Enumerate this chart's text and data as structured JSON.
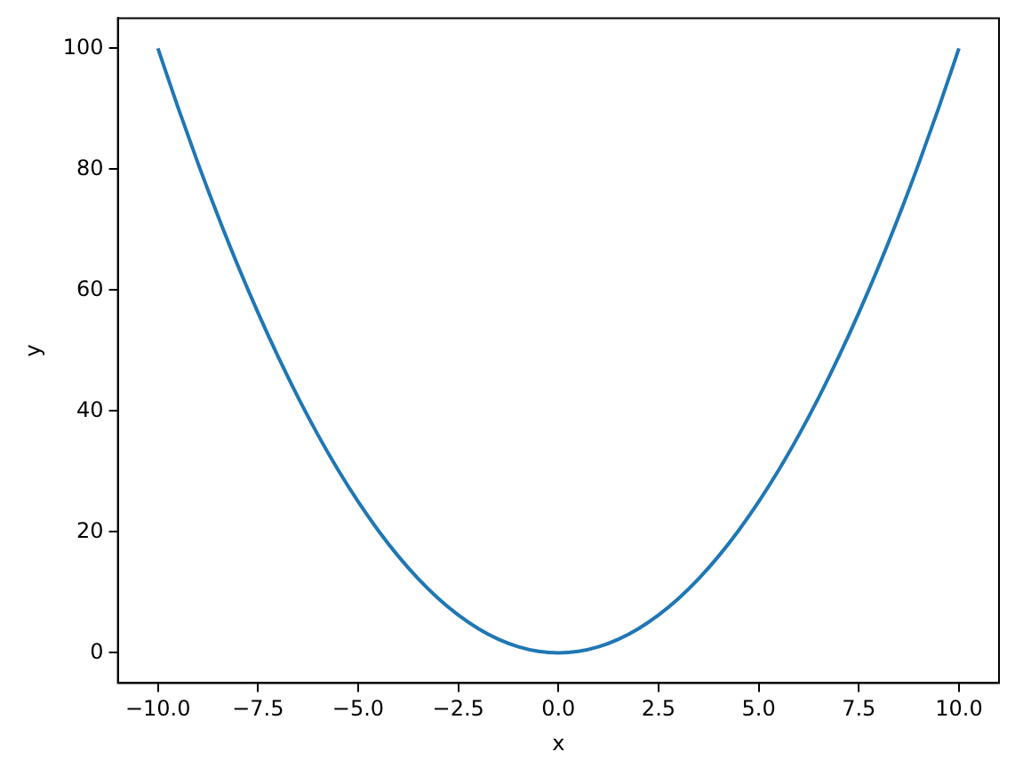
{
  "chart_data": {
    "type": "line",
    "xlabel": "x",
    "ylabel": "y",
    "x": [
      -10,
      -9.5,
      -9,
      -8.5,
      -8,
      -7.5,
      -7,
      -6.5,
      -6,
      -5.5,
      -5,
      -4.5,
      -4,
      -3.5,
      -3,
      -2.5,
      -2,
      -1.5,
      -1,
      -0.5,
      0,
      0.5,
      1,
      1.5,
      2,
      2.5,
      3,
      3.5,
      4,
      4.5,
      5,
      5.5,
      6,
      6.5,
      7,
      7.5,
      8,
      8.5,
      9,
      9.5,
      10
    ],
    "series": [
      {
        "color": "#1f77b4",
        "values": [
          100,
          90.25,
          81,
          72.25,
          64,
          56.25,
          49,
          42.25,
          36,
          30.25,
          25,
          20.25,
          16,
          12.25,
          9,
          6.25,
          4,
          2.25,
          1,
          0.25,
          0,
          0.25,
          1,
          2.25,
          4,
          6.25,
          9,
          12.25,
          16,
          20.25,
          25,
          30.25,
          36,
          42.25,
          49,
          56.25,
          64,
          72.25,
          81,
          90.25,
          100
        ]
      }
    ],
    "xlim": [
      -11,
      11
    ],
    "xticks": [
      {
        "value": -10,
        "label": "−10.0"
      },
      {
        "value": -7.5,
        "label": "−7.5"
      },
      {
        "value": -5,
        "label": "−5.0"
      },
      {
        "value": -2.5,
        "label": "−2.5"
      },
      {
        "value": 0,
        "label": "0.0"
      },
      {
        "value": 2.5,
        "label": "2.5"
      },
      {
        "value": 5,
        "label": "5.0"
      },
      {
        "value": 7.5,
        "label": "7.5"
      },
      {
        "value": 10,
        "label": "10.0"
      }
    ],
    "ylim": [
      -5,
      105
    ],
    "yticks": [
      0,
      20,
      40,
      60,
      80,
      100
    ],
    "grid": false,
    "legend": false,
    "marker": "none",
    "line_style": "solid"
  }
}
